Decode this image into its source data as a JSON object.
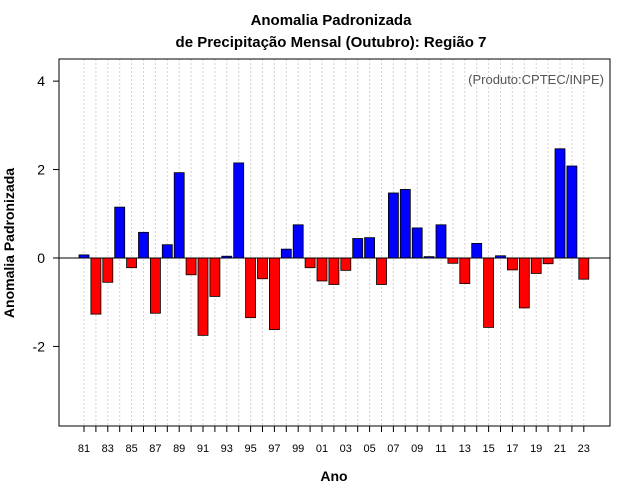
{
  "chart_data": {
    "type": "bar",
    "title_line1": "Anomalia Padronizada",
    "title_line2": "de Precipitação Mensal (Outubro): Região 7",
    "xlabel": "Ano",
    "ylabel": "Anomalia Padronizada",
    "source": "(Produto:CPTEC/INPE)",
    "ylim": [
      -3.8,
      4.5
    ],
    "yticks": [
      -2,
      0,
      2,
      4
    ],
    "ytick_labels": [
      "-2",
      "0",
      "2",
      "4"
    ],
    "x": [
      "81",
      "82",
      "83",
      "84",
      "85",
      "86",
      "87",
      "88",
      "89",
      "90",
      "91",
      "92",
      "93",
      "94",
      "95",
      "96",
      "97",
      "98",
      "99",
      "00",
      "01",
      "02",
      "03",
      "04",
      "05",
      "06",
      "07",
      "08",
      "09",
      "10",
      "11",
      "12",
      "13",
      "14",
      "15",
      "16",
      "17",
      "18",
      "19",
      "20",
      "21",
      "22",
      "23"
    ],
    "xtick_labels": [
      "81",
      "83",
      "85",
      "87",
      "89",
      "91",
      "93",
      "95",
      "97",
      "99",
      "01",
      "03",
      "05",
      "07",
      "09",
      "11",
      "13",
      "15",
      "17",
      "19",
      "21",
      "23"
    ],
    "values": [
      0.07,
      -1.27,
      -0.55,
      1.15,
      -0.22,
      0.58,
      -1.25,
      0.3,
      1.93,
      -0.38,
      -1.75,
      -0.87,
      0.04,
      2.15,
      -1.35,
      -0.47,
      -1.62,
      0.2,
      0.75,
      -0.22,
      -0.52,
      -0.6,
      -0.28,
      0.44,
      0.46,
      -0.6,
      1.47,
      1.55,
      0.68,
      0.03,
      0.75,
      -0.12,
      -0.58,
      0.33,
      -1.57,
      0.05,
      -0.27,
      -1.13,
      -0.35,
      -0.13,
      2.47,
      2.08,
      -0.48
    ],
    "colors": {
      "positive": "#0000ff",
      "negative": "#ff0000",
      "grid": "#d3d3d3",
      "zero_line": "#000000"
    }
  }
}
